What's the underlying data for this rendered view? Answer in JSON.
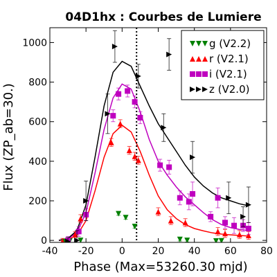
{
  "chart_data": {
    "type": "scatter",
    "title": "04D1hx : Courbes de Lumiere",
    "xlabel": "Phase (Max=53260.30 mjd)",
    "ylabel": "Flux (ZP_ab=30.)",
    "xlim": [
      -40,
      80
    ],
    "ylim": [
      -10,
      1075
    ],
    "xticks": [
      "-40",
      "-20",
      "0",
      "20",
      "40",
      "60",
      "80"
    ],
    "yticks": [
      "0",
      "200",
      "400",
      "600",
      "800",
      "1000"
    ],
    "reference_line_x": 8,
    "legend_position": "top-right",
    "series": [
      {
        "name": "g (V2.2)",
        "color": "#008000",
        "marker": "triangle-down",
        "points": [
          {
            "x": -32,
            "y": -5,
            "err": 10
          },
          {
            "x": -29,
            "y": -3,
            "err": 10
          },
          {
            "x": -23,
            "y": 0,
            "err": 10
          },
          {
            "x": -2,
            "y": 135,
            "err": 8
          },
          {
            "x": 2,
            "y": 115,
            "err": 8
          },
          {
            "x": 7,
            "y": 70,
            "err": 8
          },
          {
            "x": 32,
            "y": 5,
            "err": 8
          },
          {
            "x": 36,
            "y": 0,
            "err": 8
          },
          {
            "x": 52,
            "y": -3,
            "err": 8
          },
          {
            "x": 55,
            "y": -2,
            "err": 8
          }
        ]
      },
      {
        "name": "r (V2.1)",
        "color": "#ff0000",
        "marker": "triangle-up",
        "points": [
          {
            "x": -33,
            "y": -5,
            "err": 15
          },
          {
            "x": -26,
            "y": 30,
            "err": 15
          },
          {
            "x": -23,
            "y": 110,
            "err": 20
          },
          {
            "x": -6,
            "y": 495,
            "err": 20
          },
          {
            "x": -1,
            "y": 590,
            "err": 20
          },
          {
            "x": 4,
            "y": 455,
            "err": 20
          },
          {
            "x": 7,
            "y": 425,
            "err": 20
          },
          {
            "x": 9,
            "y": 405,
            "err": 20
          },
          {
            "x": 20,
            "y": 145,
            "err": 20
          },
          {
            "x": 27,
            "y": 100,
            "err": 20
          },
          {
            "x": 35,
            "y": 90,
            "err": 20
          },
          {
            "x": 53,
            "y": 45,
            "err": 20
          },
          {
            "x": 57,
            "y": 35,
            "err": 20
          },
          {
            "x": 65,
            "y": 30,
            "err": 20
          },
          {
            "x": 70,
            "y": 25,
            "err": 20
          }
        ]
      },
      {
        "name": "i (V2.1)",
        "color": "#bf00bf",
        "marker": "square",
        "points": [
          {
            "x": -30,
            "y": 0,
            "err": 20
          },
          {
            "x": -24,
            "y": 45,
            "err": 25
          },
          {
            "x": -20,
            "y": 130,
            "err": 30
          },
          {
            "x": -5,
            "y": 630,
            "err": 30
          },
          {
            "x": -2,
            "y": 740,
            "err": 30
          },
          {
            "x": 3,
            "y": 755,
            "err": 30
          },
          {
            "x": 7,
            "y": 700,
            "err": 30
          },
          {
            "x": 10,
            "y": 620,
            "err": 30
          },
          {
            "x": 21,
            "y": 380,
            "err": 30
          },
          {
            "x": 26,
            "y": 370,
            "err": 35
          },
          {
            "x": 32,
            "y": 215,
            "err": 35
          },
          {
            "x": 37,
            "y": 195,
            "err": 40
          },
          {
            "x": 39,
            "y": 235,
            "err": 60
          },
          {
            "x": 49,
            "y": 120,
            "err": 25
          },
          {
            "x": 53,
            "y": 215,
            "err": 50
          },
          {
            "x": 57,
            "y": 90,
            "err": 30
          },
          {
            "x": 62,
            "y": 75,
            "err": 40
          },
          {
            "x": 67,
            "y": 75,
            "err": 30
          },
          {
            "x": 70,
            "y": 60,
            "err": 30
          }
        ]
      },
      {
        "name": "z (V2.0)",
        "color": "#000000",
        "marker": "triangle-right",
        "points": [
          {
            "x": -30,
            "y": -5,
            "err": 20
          },
          {
            "x": -25,
            "y": 0,
            "err": 50
          },
          {
            "x": -20,
            "y": 200,
            "err": 100
          },
          {
            "x": -8,
            "y": 640,
            "err": 100
          },
          {
            "x": -4,
            "y": 980,
            "err": 80
          },
          {
            "x": 9,
            "y": 830,
            "err": 60
          },
          {
            "x": 23,
            "y": 570,
            "err": 70
          },
          {
            "x": 26,
            "y": 940,
            "err": 80
          },
          {
            "x": 39,
            "y": 420,
            "err": 80
          },
          {
            "x": 59,
            "y": 215,
            "err": 80
          },
          {
            "x": 67,
            "y": 120,
            "err": 50
          },
          {
            "x": 70,
            "y": 180,
            "err": 90
          }
        ]
      }
    ],
    "fits": [
      {
        "name": "r",
        "color": "#ff0000",
        "x": [
          -35,
          -30,
          -25,
          -20,
          -15,
          -10,
          -5,
          0,
          5,
          10,
          15,
          20,
          25,
          30,
          35,
          40,
          45,
          50,
          55,
          60,
          65,
          70
        ],
        "y": [
          0,
          5,
          25,
          100,
          250,
          420,
          540,
          582,
          548,
          450,
          330,
          225,
          155,
          110,
          80,
          60,
          48,
          38,
          32,
          28,
          25,
          22
        ]
      },
      {
        "name": "i",
        "color": "#bf00bf",
        "x": [
          -35,
          -30,
          -25,
          -20,
          -15,
          -10,
          -5,
          0,
          5,
          10,
          15,
          20,
          25,
          30,
          35,
          40,
          45,
          50,
          55,
          60,
          65,
          70
        ],
        "y": [
          0,
          8,
          40,
          140,
          340,
          560,
          720,
          790,
          765,
          650,
          510,
          400,
          330,
          270,
          220,
          180,
          140,
          105,
          80,
          65,
          55,
          50
        ]
      },
      {
        "name": "z",
        "color": "#000000",
        "x": [
          -35,
          -30,
          -25,
          -20,
          -15,
          -10,
          -5,
          0,
          5,
          10,
          15,
          20,
          25,
          30,
          35,
          40,
          45,
          50,
          55,
          60,
          65,
          70
        ],
        "y": [
          0,
          10,
          50,
          180,
          420,
          680,
          850,
          905,
          880,
          780,
          680,
          590,
          520,
          450,
          380,
          320,
          275,
          240,
          215,
          200,
          185,
          175
        ]
      }
    ]
  }
}
